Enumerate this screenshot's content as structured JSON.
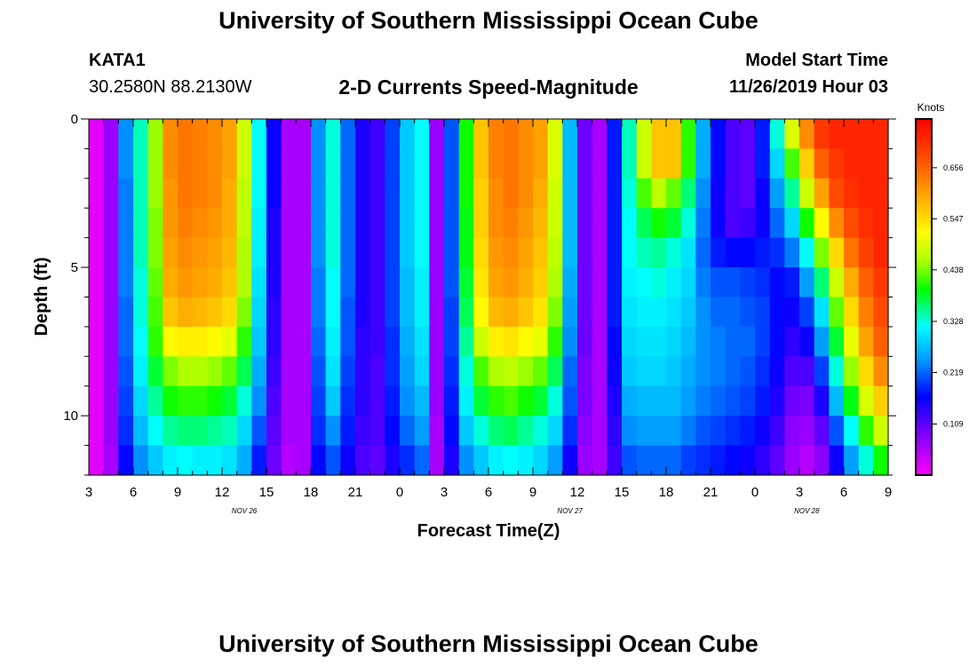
{
  "header": {
    "title_top": "University of Southern Mississippi Ocean Cube",
    "title_bottom": "University of Southern Mississippi Ocean Cube",
    "station_id": "KATA1",
    "coordinates": "30.2580N 88.2130W",
    "plot_title": "2-D Currents Speed-Magnitude",
    "model_start_label": "Model Start Time",
    "model_start_value": "11/26/2019 Hour 03"
  },
  "chart_data": {
    "type": "heatmap",
    "title": "2-D Currents Speed-Magnitude",
    "xlabel": "Forecast Time(Z)",
    "ylabel": "Depth (ft)",
    "colorbar_label": "Knots",
    "x_ticks": [
      "3",
      "6",
      "9",
      "12",
      "15",
      "18",
      "21",
      "0",
      "3",
      "6",
      "9",
      "12",
      "15",
      "18",
      "21",
      "0",
      "3",
      "6",
      "9"
    ],
    "date_labels": [
      {
        "hour_index": 10.5,
        "text": "NOV 26"
      },
      {
        "hour_index": 32.5,
        "text": "NOV 27"
      },
      {
        "hour_index": 48.5,
        "text": "NOV 28"
      }
    ],
    "y_ticks": [
      0,
      5,
      10
    ],
    "ylim": [
      0,
      12
    ],
    "hours_range": [
      0,
      54
    ],
    "colorbar_ticks": [
      "0.656",
      "0.547",
      "0.438",
      "0.328",
      "0.219",
      "0.109"
    ],
    "vmin": 0.0,
    "vmax": 0.76,
    "depth_levels": 12,
    "rows": [
      {
        "depth": 0.5,
        "values": [
          0.02,
          0.07,
          0.24,
          0.34,
          0.45,
          0.62,
          0.64,
          0.63,
          0.62,
          0.6,
          0.48,
          0.32,
          0.16,
          0.06,
          0.06,
          0.24,
          0.33,
          0.22,
          0.15,
          0.13,
          0.2,
          0.28,
          0.32,
          0.07,
          0.21,
          0.4,
          0.57,
          0.63,
          0.64,
          0.62,
          0.6,
          0.49,
          0.27,
          0.1,
          0.06,
          0.18,
          0.34,
          0.48,
          0.57,
          0.57,
          0.41,
          0.26,
          0.17,
          0.12,
          0.11,
          0.18,
          0.33,
          0.49,
          0.62,
          0.7,
          0.72,
          0.72,
          0.72,
          0.72
        ]
      },
      {
        "depth": 1.5,
        "values": [
          0.02,
          0.07,
          0.24,
          0.34,
          0.45,
          0.62,
          0.64,
          0.63,
          0.62,
          0.6,
          0.48,
          0.32,
          0.16,
          0.06,
          0.06,
          0.24,
          0.33,
          0.22,
          0.15,
          0.13,
          0.2,
          0.28,
          0.32,
          0.07,
          0.21,
          0.4,
          0.57,
          0.63,
          0.64,
          0.62,
          0.6,
          0.49,
          0.27,
          0.1,
          0.06,
          0.18,
          0.34,
          0.48,
          0.57,
          0.57,
          0.41,
          0.26,
          0.17,
          0.12,
          0.11,
          0.18,
          0.29,
          0.42,
          0.56,
          0.66,
          0.7,
          0.72,
          0.72,
          0.72
        ]
      },
      {
        "depth": 2.5,
        "values": [
          0.02,
          0.07,
          0.23,
          0.34,
          0.45,
          0.61,
          0.64,
          0.63,
          0.62,
          0.59,
          0.47,
          0.32,
          0.16,
          0.06,
          0.06,
          0.24,
          0.33,
          0.22,
          0.15,
          0.13,
          0.2,
          0.28,
          0.32,
          0.07,
          0.21,
          0.4,
          0.56,
          0.62,
          0.64,
          0.62,
          0.59,
          0.48,
          0.27,
          0.1,
          0.06,
          0.18,
          0.33,
          0.42,
          0.47,
          0.43,
          0.36,
          0.24,
          0.16,
          0.12,
          0.11,
          0.16,
          0.25,
          0.35,
          0.48,
          0.6,
          0.68,
          0.71,
          0.72,
          0.72
        ]
      },
      {
        "depth": 3.5,
        "values": [
          0.02,
          0.07,
          0.23,
          0.34,
          0.44,
          0.61,
          0.63,
          0.62,
          0.61,
          0.59,
          0.47,
          0.31,
          0.15,
          0.06,
          0.06,
          0.24,
          0.33,
          0.22,
          0.15,
          0.13,
          0.2,
          0.28,
          0.32,
          0.07,
          0.21,
          0.39,
          0.56,
          0.62,
          0.63,
          0.61,
          0.58,
          0.48,
          0.27,
          0.1,
          0.06,
          0.18,
          0.32,
          0.37,
          0.4,
          0.38,
          0.33,
          0.23,
          0.16,
          0.12,
          0.13,
          0.16,
          0.22,
          0.29,
          0.4,
          0.52,
          0.62,
          0.68,
          0.71,
          0.72
        ]
      },
      {
        "depth": 4.5,
        "values": [
          0.02,
          0.07,
          0.23,
          0.34,
          0.44,
          0.6,
          0.62,
          0.61,
          0.6,
          0.58,
          0.46,
          0.31,
          0.15,
          0.06,
          0.06,
          0.24,
          0.33,
          0.22,
          0.15,
          0.13,
          0.2,
          0.28,
          0.32,
          0.07,
          0.21,
          0.39,
          0.55,
          0.61,
          0.62,
          0.6,
          0.57,
          0.47,
          0.27,
          0.1,
          0.06,
          0.18,
          0.32,
          0.34,
          0.35,
          0.33,
          0.3,
          0.22,
          0.18,
          0.17,
          0.17,
          0.18,
          0.19,
          0.23,
          0.32,
          0.44,
          0.55,
          0.64,
          0.69,
          0.72
        ]
      },
      {
        "depth": 5.5,
        "values": [
          0.02,
          0.07,
          0.23,
          0.33,
          0.43,
          0.59,
          0.61,
          0.6,
          0.59,
          0.57,
          0.46,
          0.3,
          0.15,
          0.06,
          0.06,
          0.23,
          0.32,
          0.22,
          0.15,
          0.13,
          0.2,
          0.27,
          0.31,
          0.07,
          0.21,
          0.38,
          0.54,
          0.6,
          0.61,
          0.59,
          0.56,
          0.46,
          0.26,
          0.1,
          0.06,
          0.18,
          0.31,
          0.32,
          0.33,
          0.31,
          0.29,
          0.23,
          0.21,
          0.21,
          0.2,
          0.19,
          0.17,
          0.18,
          0.25,
          0.36,
          0.48,
          0.59,
          0.66,
          0.7
        ]
      },
      {
        "depth": 6.5,
        "values": [
          0.02,
          0.07,
          0.22,
          0.33,
          0.42,
          0.57,
          0.59,
          0.58,
          0.57,
          0.55,
          0.44,
          0.29,
          0.14,
          0.06,
          0.06,
          0.23,
          0.32,
          0.21,
          0.15,
          0.13,
          0.2,
          0.27,
          0.31,
          0.07,
          0.2,
          0.37,
          0.52,
          0.58,
          0.59,
          0.57,
          0.54,
          0.44,
          0.25,
          0.1,
          0.06,
          0.18,
          0.3,
          0.31,
          0.31,
          0.3,
          0.28,
          0.24,
          0.22,
          0.22,
          0.21,
          0.2,
          0.17,
          0.16,
          0.2,
          0.3,
          0.43,
          0.55,
          0.63,
          0.68
        ]
      },
      {
        "depth": 7.5,
        "values": [
          0.02,
          0.07,
          0.22,
          0.32,
          0.41,
          0.52,
          0.53,
          0.53,
          0.52,
          0.5,
          0.41,
          0.28,
          0.14,
          0.06,
          0.06,
          0.22,
          0.31,
          0.21,
          0.14,
          0.13,
          0.19,
          0.26,
          0.3,
          0.07,
          0.2,
          0.35,
          0.48,
          0.53,
          0.54,
          0.52,
          0.5,
          0.41,
          0.24,
          0.1,
          0.06,
          0.17,
          0.29,
          0.3,
          0.3,
          0.29,
          0.27,
          0.24,
          0.23,
          0.22,
          0.22,
          0.2,
          0.17,
          0.14,
          0.16,
          0.25,
          0.38,
          0.5,
          0.6,
          0.66
        ]
      },
      {
        "depth": 8.5,
        "values": [
          0.02,
          0.07,
          0.21,
          0.31,
          0.38,
          0.44,
          0.46,
          0.46,
          0.45,
          0.43,
          0.37,
          0.26,
          0.13,
          0.06,
          0.06,
          0.21,
          0.3,
          0.2,
          0.14,
          0.12,
          0.19,
          0.25,
          0.29,
          0.07,
          0.19,
          0.33,
          0.42,
          0.46,
          0.47,
          0.45,
          0.43,
          0.37,
          0.22,
          0.09,
          0.06,
          0.16,
          0.28,
          0.29,
          0.29,
          0.28,
          0.26,
          0.24,
          0.23,
          0.22,
          0.21,
          0.19,
          0.16,
          0.12,
          0.12,
          0.2,
          0.33,
          0.45,
          0.55,
          0.62
        ]
      },
      {
        "depth": 9.5,
        "values": [
          0.02,
          0.07,
          0.2,
          0.29,
          0.35,
          0.4,
          0.41,
          0.41,
          0.4,
          0.38,
          0.33,
          0.24,
          0.12,
          0.06,
          0.06,
          0.2,
          0.28,
          0.19,
          0.14,
          0.12,
          0.18,
          0.24,
          0.27,
          0.07,
          0.18,
          0.31,
          0.38,
          0.41,
          0.42,
          0.4,
          0.38,
          0.33,
          0.21,
          0.09,
          0.06,
          0.15,
          0.26,
          0.27,
          0.27,
          0.27,
          0.25,
          0.23,
          0.22,
          0.21,
          0.2,
          0.18,
          0.15,
          0.1,
          0.09,
          0.15,
          0.27,
          0.39,
          0.49,
          0.56
        ]
      },
      {
        "depth": 10.5,
        "values": [
          0.02,
          0.07,
          0.19,
          0.27,
          0.32,
          0.35,
          0.36,
          0.36,
          0.35,
          0.34,
          0.29,
          0.21,
          0.11,
          0.06,
          0.06,
          0.19,
          0.24,
          0.18,
          0.13,
          0.12,
          0.17,
          0.22,
          0.25,
          0.06,
          0.17,
          0.28,
          0.33,
          0.36,
          0.37,
          0.35,
          0.33,
          0.29,
          0.19,
          0.08,
          0.06,
          0.14,
          0.24,
          0.25,
          0.25,
          0.25,
          0.23,
          0.21,
          0.2,
          0.19,
          0.18,
          0.16,
          0.13,
          0.08,
          0.07,
          0.11,
          0.21,
          0.32,
          0.41,
          0.48
        ]
      },
      {
        "depth": 11.5,
        "values": [
          0.02,
          0.06,
          0.17,
          0.24,
          0.28,
          0.31,
          0.32,
          0.31,
          0.31,
          0.3,
          0.26,
          0.18,
          0.1,
          0.05,
          0.06,
          0.17,
          0.21,
          0.16,
          0.12,
          0.11,
          0.15,
          0.19,
          0.22,
          0.06,
          0.15,
          0.24,
          0.28,
          0.31,
          0.32,
          0.31,
          0.29,
          0.25,
          0.16,
          0.07,
          0.06,
          0.13,
          0.21,
          0.22,
          0.22,
          0.22,
          0.2,
          0.19,
          0.18,
          0.17,
          0.16,
          0.14,
          0.11,
          0.07,
          0.05,
          0.08,
          0.16,
          0.25,
          0.33,
          0.4
        ]
      }
    ]
  }
}
